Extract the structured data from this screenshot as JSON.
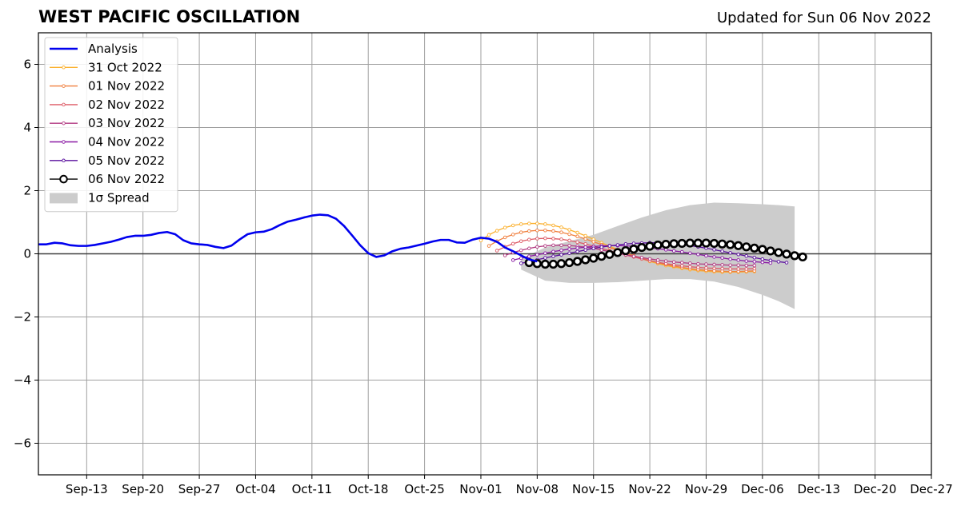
{
  "header": {
    "title": "WEST PACIFIC OSCILLATION",
    "updated": "Updated for Sun 06 Nov 2022"
  },
  "chart_data": {
    "type": "line",
    "title": "WEST PACIFIC OSCILLATION",
    "subtitle": "Updated for Sun 06 Nov 2022",
    "xlabel": "",
    "ylabel": "",
    "xlim": [
      "2022-09-07",
      "2022-12-27"
    ],
    "ylim": [
      -7,
      7
    ],
    "grid": true,
    "legend_position": "top-left",
    "x_ticks": [
      "2022-09-13",
      "2022-09-20",
      "2022-09-27",
      "2022-10-04",
      "2022-10-11",
      "2022-10-18",
      "2022-10-25",
      "2022-11-01",
      "2022-11-08",
      "2022-11-15",
      "2022-11-22",
      "2022-11-29",
      "2022-12-06",
      "2022-12-13",
      "2022-12-20",
      "2022-12-27"
    ],
    "x_tick_labels": [
      "Sep-13",
      "Sep-20",
      "Sep-27",
      "Oct-04",
      "Oct-11",
      "Oct-18",
      "Oct-25",
      "Nov-01",
      "Nov-08",
      "Nov-15",
      "Nov-22",
      "Nov-29",
      "Dec-06",
      "Dec-13",
      "Dec-20",
      "Dec-27"
    ],
    "y_ticks": [
      6,
      4,
      2,
      0,
      -2,
      -4,
      -6
    ],
    "y_tick_labels": [
      "6",
      "4",
      "2",
      "0",
      "−2",
      "−4",
      "−6"
    ],
    "analysis": {
      "name": "Analysis",
      "color": "#0000ee",
      "start_date": "2022-09-07",
      "values": [
        0.3,
        0.3,
        0.35,
        0.33,
        0.27,
        0.25,
        0.25,
        0.28,
        0.33,
        0.38,
        0.45,
        0.53,
        0.57,
        0.57,
        0.6,
        0.66,
        0.69,
        0.62,
        0.43,
        0.33,
        0.3,
        0.28,
        0.22,
        0.18,
        0.26,
        0.45,
        0.62,
        0.68,
        0.7,
        0.78,
        0.91,
        1.02,
        1.08,
        1.15,
        1.21,
        1.24,
        1.22,
        1.11,
        0.88,
        0.58,
        0.27,
        0.02,
        -0.1,
        -0.05,
        0.08,
        0.16,
        0.2,
        0.26,
        0.32,
        0.39,
        0.44,
        0.44,
        0.36,
        0.35,
        0.45,
        0.51,
        0.48,
        0.38,
        0.2,
        0.08,
        -0.05,
        -0.18,
        -0.24
      ]
    },
    "forecasts": [
      {
        "name": "31 Oct 2022",
        "color": "#fbb02d",
        "start_date": "2022-11-01",
        "values": [
          0.42,
          0.6,
          0.73,
          0.83,
          0.9,
          0.94,
          0.96,
          0.96,
          0.94,
          0.9,
          0.84,
          0.76,
          0.67,
          0.57,
          0.46,
          0.35,
          0.24,
          0.13,
          0.03,
          -0.07,
          -0.16,
          -0.24,
          -0.31,
          -0.37,
          -0.42,
          -0.46,
          -0.5,
          -0.53,
          -0.55,
          -0.57,
          -0.58,
          -0.58,
          -0.58,
          -0.57,
          -0.56
        ]
      },
      {
        "name": "01 Nov 2022",
        "color": "#f07f3e",
        "start_date": "2022-11-02",
        "values": [
          0.25,
          0.4,
          0.52,
          0.61,
          0.68,
          0.72,
          0.74,
          0.74,
          0.72,
          0.68,
          0.62,
          0.55,
          0.47,
          0.38,
          0.29,
          0.2,
          0.11,
          0.02,
          -0.06,
          -0.14,
          -0.21,
          -0.28,
          -0.34,
          -0.39,
          -0.43,
          -0.47,
          -0.5,
          -0.52,
          -0.54,
          -0.55,
          -0.56,
          -0.56,
          -0.55,
          -0.54
        ]
      },
      {
        "name": "02 Nov 2022",
        "color": "#dd5a66",
        "start_date": "2022-11-03",
        "values": [
          0.1,
          0.22,
          0.32,
          0.4,
          0.45,
          0.48,
          0.49,
          0.48,
          0.46,
          0.42,
          0.37,
          0.31,
          0.24,
          0.17,
          0.1,
          0.03,
          -0.04,
          -0.1,
          -0.16,
          -0.22,
          -0.27,
          -0.31,
          -0.35,
          -0.38,
          -0.41,
          -0.43,
          -0.45,
          -0.46,
          -0.47,
          -0.48,
          -0.48,
          -0.48,
          -0.47
        ]
      },
      {
        "name": "03 Nov 2022",
        "color": "#b23a82",
        "start_date": "2022-11-04",
        "values": [
          -0.05,
          0.04,
          0.11,
          0.17,
          0.22,
          0.25,
          0.27,
          0.27,
          0.26,
          0.24,
          0.21,
          0.17,
          0.12,
          0.07,
          0.02,
          -0.03,
          -0.08,
          -0.12,
          -0.16,
          -0.2,
          -0.23,
          -0.26,
          -0.28,
          -0.3,
          -0.32,
          -0.33,
          -0.34,
          -0.35,
          -0.36,
          -0.36,
          -0.37,
          -0.37
        ]
      },
      {
        "name": "04 Nov 2022",
        "color": "#8a1aa4",
        "start_date": "2022-11-05",
        "values": [
          -0.2,
          -0.14,
          -0.08,
          -0.03,
          0.02,
          0.07,
          0.11,
          0.15,
          0.18,
          0.21,
          0.23,
          0.25,
          0.26,
          0.26,
          0.25,
          0.24,
          0.22,
          0.19,
          0.16,
          0.13,
          0.09,
          0.06,
          0.02,
          -0.02,
          -0.06,
          -0.1,
          -0.13,
          -0.17,
          -0.2,
          -0.23,
          -0.25,
          -0.27,
          -0.29
        ]
      },
      {
        "name": "05 Nov 2022",
        "color": "#5a0f9e",
        "start_date": "2022-11-06",
        "values": [
          -0.3,
          -0.25,
          -0.19,
          -0.13,
          -0.08,
          -0.03,
          0.02,
          0.07,
          0.12,
          0.17,
          0.21,
          0.25,
          0.28,
          0.31,
          0.33,
          0.34,
          0.35,
          0.35,
          0.34,
          0.32,
          0.29,
          0.26,
          0.22,
          0.18,
          0.13,
          0.08,
          0.03,
          -0.02,
          -0.07,
          -0.12,
          -0.17,
          -0.21,
          -0.25,
          -0.28
        ]
      },
      {
        "name": "06 Nov 2022",
        "color": "#000000",
        "start_date": "2022-11-07",
        "values": [
          -0.28,
          -0.31,
          -0.33,
          -0.33,
          -0.31,
          -0.28,
          -0.24,
          -0.19,
          -0.14,
          -0.08,
          -0.02,
          0.04,
          0.1,
          0.15,
          0.2,
          0.24,
          0.28,
          0.3,
          0.32,
          0.33,
          0.34,
          0.34,
          0.34,
          0.33,
          0.31,
          0.29,
          0.26,
          0.22,
          0.18,
          0.14,
          0.09,
          0.04,
          -0.01,
          -0.06,
          -0.1
        ]
      }
    ],
    "spread": {
      "name": "1σ Spread",
      "color": "#cccccc",
      "dates": [
        "2022-11-06",
        "2022-11-09",
        "2022-11-12",
        "2022-11-15",
        "2022-11-18",
        "2022-11-21",
        "2022-11-24",
        "2022-11-27",
        "2022-11-30",
        "2022-12-03",
        "2022-12-06",
        "2022-12-08",
        "2022-12-10"
      ],
      "upper": [
        -0.15,
        0.2,
        0.4,
        0.6,
        0.88,
        1.15,
        1.38,
        1.54,
        1.62,
        1.6,
        1.57,
        1.54,
        1.5
      ],
      "lower": [
        -0.5,
        -0.85,
        -0.92,
        -0.92,
        -0.9,
        -0.85,
        -0.8,
        -0.8,
        -0.88,
        -1.05,
        -1.3,
        -1.5,
        -1.75
      ]
    }
  }
}
